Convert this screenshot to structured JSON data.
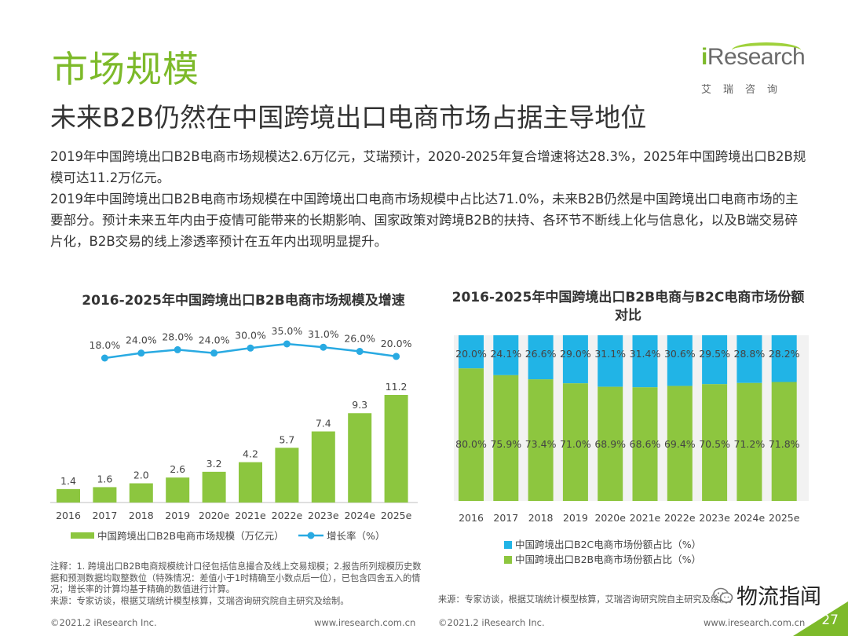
{
  "header": {
    "title": "市场规模",
    "subtitle": "未来B2B仍然在中国跨境出口电商市场占据主导地位"
  },
  "logo": {
    "wordmark_i": "i",
    "wordmark_rest": "Research",
    "chinese": "艾瑞咨询"
  },
  "body": {
    "paragraph1": "2019年中国跨境出口B2B电商市场规模达2.6万亿元，艾瑞预计，2020-2025年复合增速将达28.3%，2025年中国跨境出口B2B规模可达11.2万亿元。",
    "paragraph2": "2019年中国跨境出口B2B电商市场规模在中国跨境出口电商市场规模中占比达71.0%，未来B2B仍然是中国跨境出口电商市场的主要部分。预计未来五年内由于疫情可能带来的长期影响、国家政策对跨境B2B的扶持、各环节不断线上化与信息化，以及B端交易碎片化，B2B交易的线上渗透率预计在五年内出现明显提升。"
  },
  "colors": {
    "brand_green": "#7dba2a",
    "bar_green": "#8cc63f",
    "line_blue": "#29aae2",
    "b2c_blue": "#21b4e6",
    "b2b_green": "#8dc63f"
  },
  "chart_data": [
    {
      "type": "bar",
      "title": "2016-2025年中国跨境出口B2B电商市场规模及增速",
      "categories": [
        "2016",
        "2017",
        "2018",
        "2019",
        "2020e",
        "2021e",
        "2022e",
        "2023e",
        "2024e",
        "2025e"
      ],
      "series": [
        {
          "name": "中国跨境出口B2B电商市场规模（万亿元）",
          "kind": "bar",
          "values": [
            1.4,
            1.6,
            2.0,
            2.6,
            3.2,
            4.2,
            5.7,
            7.4,
            9.3,
            11.2
          ]
        },
        {
          "name": "增长率（%）",
          "kind": "line",
          "values": [
            null,
            18.0,
            24.0,
            28.0,
            24.0,
            30.0,
            35.0,
            31.0,
            26.0,
            20.0
          ]
        }
      ],
      "value_labels": [
        "1.4",
        "1.6",
        "2.0",
        "2.6",
        "3.2",
        "4.2",
        "5.7",
        "7.4",
        "9.3",
        "11.2"
      ],
      "rate_labels": [
        "",
        "18.0%",
        "24.0%",
        "28.0%",
        "24.0%",
        "30.0%",
        "35.0%",
        "31.0%",
        "26.0%",
        "20.0%"
      ],
      "ylim": [
        0,
        12
      ],
      "rate_ylim": [
        0,
        40
      ],
      "grid": false,
      "legend_position": "bottom"
    },
    {
      "type": "bar",
      "stacked": true,
      "percent": true,
      "title": "2016-2025年中国跨境出口B2B电商与B2C电商市场份额对比",
      "categories": [
        "2016",
        "2017",
        "2018",
        "2019",
        "2020e",
        "2021e",
        "2022e",
        "2023e",
        "2024e",
        "2025e"
      ],
      "series": [
        {
          "name": "中国跨境出口B2C电商市场份额占比（%）",
          "values": [
            20.0,
            24.1,
            26.6,
            29.0,
            31.1,
            31.4,
            30.6,
            29.5,
            28.8,
            28.2
          ]
        },
        {
          "name": "中国跨境出口B2B电商市场份额占比（%）",
          "values": [
            80.0,
            75.9,
            73.4,
            71.0,
            68.9,
            68.6,
            69.4,
            70.5,
            71.2,
            71.8
          ]
        }
      ],
      "b2c_labels": [
        "20.0%",
        "24.1%",
        "26.6%",
        "29.0%",
        "31.1%",
        "31.4%",
        "30.6%",
        "29.5%",
        "28.8%",
        "28.2%"
      ],
      "b2b_labels": [
        "80.0%",
        "75.9%",
        "73.4%",
        "71.0%",
        "68.9%",
        "68.6%",
        "69.4%",
        "70.5%",
        "71.2%",
        "71.8%"
      ],
      "ylim": [
        0,
        100
      ],
      "grid": false,
      "legend_position": "bottom"
    }
  ],
  "notes": {
    "chart1_note": "注释：1. 跨境出口B2B电商规模统计口径包括信息撮合及线上交易规模；2.报告所列规模历史数据和预测数据均取整数位（特殊情况：差值小于1时精确至小数点后一位），已包含四舍五入的情况；增长率的计算均基于精确的数值进行计算。",
    "chart1_source": "来源：专家访谈，根据艾瑞统计模型核算，艾瑞咨询研究院自主研究及绘制。",
    "chart2_source": "来源：专家访谈，根据艾瑞统计模型核算，艾瑞咨询研究院自主研究及绘制。"
  },
  "footer": {
    "copyright_left": "©2021.2 iResearch Inc.",
    "url_left": "www.iresearch.com.cn",
    "copyright_right": "©2021.2 iResearch Inc.",
    "url_right": "www.iresearch.com.cn",
    "page_number": "27",
    "wechat_label": "物流指闻"
  }
}
